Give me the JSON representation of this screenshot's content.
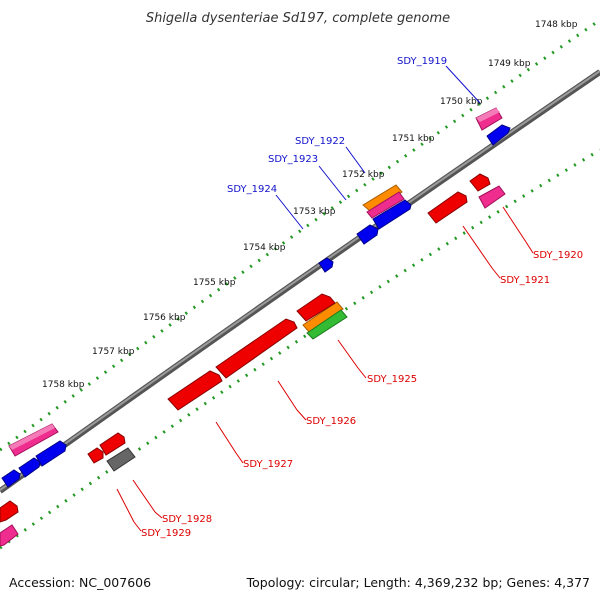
{
  "title": "Shigella dysenteriae Sd197, complete genome",
  "footer": {
    "accession": "Accession: NC_007606",
    "summary": "Topology: circular; Length: 4,369,232 bp; Genes: 4,377"
  },
  "colors": {
    "backbone": "#777777",
    "tick_dots": "#229922",
    "forward_label": "#1111cc",
    "reverse_label": "#dd0000",
    "red": "#ee0000",
    "blue": "#0000ee",
    "magenta": "#ee2d8e",
    "orange": "#ff8c00",
    "green": "#33bb33",
    "gray": "#666666"
  },
  "kbp_ticks": [
    "1748 kbp",
    "1749 kbp",
    "1750 kbp",
    "1751 kbp",
    "1752 kbp",
    "1753 kbp",
    "1754 kbp",
    "1755 kbp",
    "1756 kbp",
    "1757 kbp",
    "1758 kbp"
  ],
  "forward_labels": [
    "SDY_1919",
    "SDY_1922",
    "SDY_1923",
    "SDY_1924"
  ],
  "reverse_labels": [
    "SDY_1920",
    "SDY_1921",
    "SDY_1925",
    "SDY_1926",
    "SDY_1927",
    "SDY_1928",
    "SDY_1929"
  ]
}
